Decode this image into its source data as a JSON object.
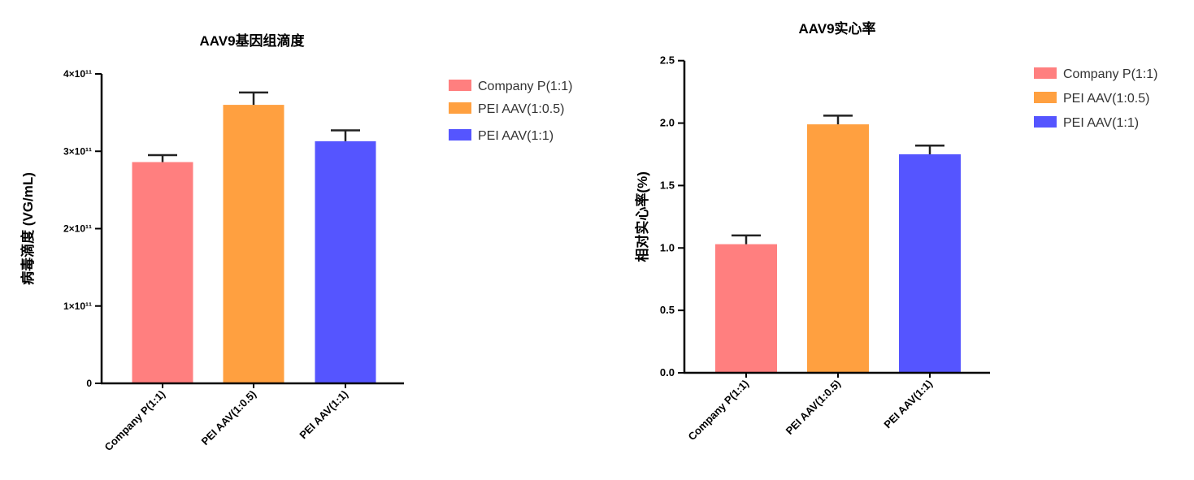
{
  "chart_data": [
    {
      "type": "bar",
      "title": "AAV9基因组滴度",
      "ylabel": "病毒滴度 (VG/mL)",
      "xlabel": "",
      "categories": [
        "Company P(1:1)",
        "PEI AAV(1:0.5)",
        "PEI AAV(1:1)"
      ],
      "values": [
        286000000000.0,
        360000000000.0,
        313000000000.0
      ],
      "error_upper": [
        295000000000.0,
        376000000000.0,
        327000000000.0
      ],
      "ylim": [
        0,
        400000000000.0
      ],
      "yticks": [
        0,
        100000000000.0,
        200000000000.0,
        300000000000.0,
        400000000000.0
      ],
      "ytick_labels": [
        "0",
        "1×10¹¹",
        "2×10¹¹",
        "3×10¹¹",
        "4×10¹¹"
      ],
      "legend": [
        "Company P(1:1)",
        "PEI AAV(1:0.5)",
        "PEI AAV(1:1)"
      ],
      "legend_position": "right",
      "grid": false,
      "colors": [
        "#FF7F7F",
        "#FFA040",
        "#5555FF"
      ]
    },
    {
      "type": "bar",
      "title": "AAV9实心率",
      "ylabel": "相对实心率(%)",
      "xlabel": "",
      "categories": [
        "Company P(1:1)",
        "PEI AAV(1:0.5)",
        "PEI AAV(1:1)"
      ],
      "values": [
        1.03,
        1.99,
        1.75
      ],
      "error_upper": [
        1.1,
        2.06,
        1.82
      ],
      "ylim": [
        0,
        2.5
      ],
      "yticks": [
        0,
        0.5,
        1.0,
        1.5,
        2.0,
        2.5
      ],
      "ytick_labels": [
        "0.0",
        "0.5",
        "1.0",
        "1.5",
        "2.0",
        "2.5"
      ],
      "legend": [
        "Company P(1:1)",
        "PEI AAV(1:0.5)",
        "PEI AAV(1:1)"
      ],
      "legend_position": "right",
      "grid": false,
      "colors": [
        "#FF7F7F",
        "#FFA040",
        "#5555FF"
      ]
    }
  ]
}
